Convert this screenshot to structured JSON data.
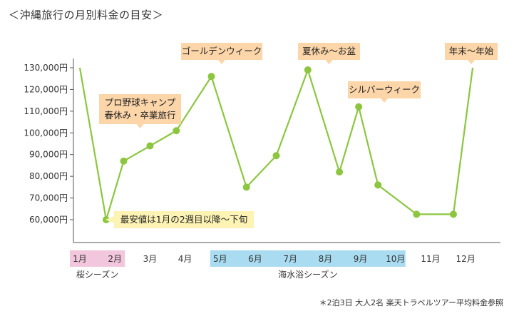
{
  "title": "＜沖縄旅行の月別料金の目安＞",
  "footnote": "＊2泊3日 大人2名 楽天トラベルツアー平均料金参照",
  "colors": {
    "line": "#8cc63f",
    "callout": "#fcd5a8",
    "callout_note": "#fdf3b4",
    "season_sakura": "#f2c6dc",
    "season_beach": "#a9dcf0",
    "axis": "#555555"
  },
  "chart_data": {
    "type": "line",
    "title": "＜沖縄旅行の月別料金の目安＞",
    "xlabel": "",
    "ylabel": "",
    "ylim": [
      50000,
      130000
    ],
    "yticks": [
      60000,
      70000,
      80000,
      90000,
      100000,
      110000,
      120000,
      130000
    ],
    "ytick_labels": [
      "60,000円",
      "70,000円",
      "80,000円",
      "90,000円",
      "100,000円",
      "110,000円",
      "120,000円",
      "130,000円"
    ],
    "month_labels": [
      "1月",
      "2月",
      "3月",
      "4月",
      "5月",
      "6月",
      "7月",
      "8月",
      "9月",
      "10月",
      "11月",
      "12月"
    ],
    "grid": false,
    "x": [
      1.0,
      1.75,
      2.25,
      3.0,
      3.75,
      4.75,
      5.75,
      6.6,
      7.5,
      8.4,
      8.95,
      9.5,
      10.6,
      11.65,
      12.2
    ],
    "y": [
      130000,
      60000,
      87000,
      94000,
      101000,
      126000,
      75000,
      89500,
      129000,
      82000,
      112000,
      76000,
      62500,
      62500,
      130000
    ],
    "seasons": [
      {
        "label": "桜シーズン",
        "from_month": 1,
        "to_month": 2
      },
      {
        "label": "海水浴シーズン",
        "from_month": 5,
        "to_month": 10
      }
    ],
    "annotations": [
      {
        "lines": [
          "ゴールデンウィーク"
        ],
        "x": 3.75,
        "style": "callout"
      },
      {
        "lines": [
          "夏休み〜お盆"
        ],
        "x": 6.6,
        "style": "callout"
      },
      {
        "lines": [
          "シルバーウィーク"
        ],
        "x": 8.95,
        "style": "callout"
      },
      {
        "lines": [
          "年末〜年始"
        ],
        "x": 12.2,
        "style": "callout"
      },
      {
        "lines": [
          "プロ野球キャンプ",
          "春休み・卒業旅行"
        ],
        "x": 2.25,
        "style": "callout"
      },
      {
        "lines": [
          "最安値は1月の2週目以降〜下旬"
        ],
        "x": 1.75,
        "style": "note"
      }
    ]
  }
}
